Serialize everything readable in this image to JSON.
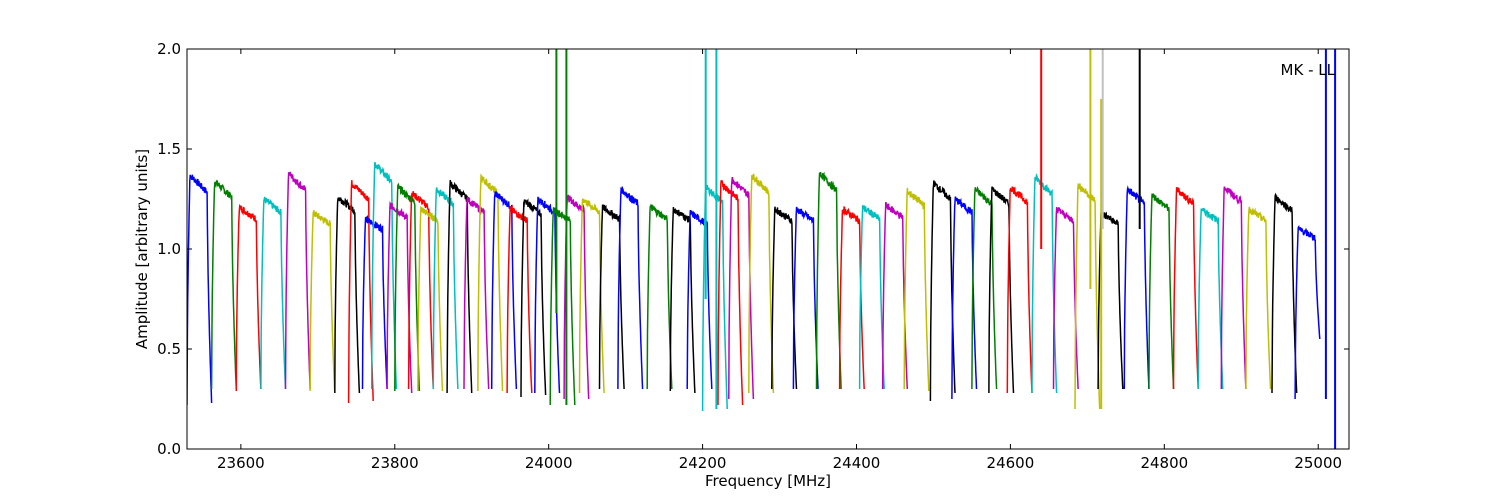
{
  "chart_data": {
    "type": "line",
    "title": "",
    "annotation": "MK - LL",
    "xlabel": "Frequency [MHz]",
    "ylabel": "Amplitude [arbitrary units]",
    "xlim": [
      23530,
      25040
    ],
    "ylim": [
      0.0,
      2.0
    ],
    "xticks": [
      23600,
      23800,
      24000,
      24200,
      24400,
      24600,
      24800,
      25000
    ],
    "yticks": [
      0.0,
      0.5,
      1.0,
      1.5,
      2.0
    ],
    "xtick_labels": [
      "23600",
      "23800",
      "24000",
      "24200",
      "24400",
      "24600",
      "24800",
      "25000"
    ],
    "ytick_labels": [
      "0.0",
      "0.5",
      "1.0",
      "1.5",
      "2.0"
    ],
    "grid": false,
    "legend": "none",
    "color_cycle": [
      "#0000ff",
      "#007f00",
      "#ff0000",
      "#00bfbf",
      "#bf00bf",
      "#bfbf00",
      "#000000"
    ],
    "channel_width_mhz": 32,
    "channels": [
      {
        "start": 23530,
        "color": "#0000ff",
        "peak": 1.37,
        "minL": 0.22,
        "minR": 0.23
      },
      {
        "start": 23562,
        "color": "#007f00",
        "peak": 1.34,
        "minL": 0.3,
        "minR": 0.3
      },
      {
        "start": 23594,
        "color": "#ff0000",
        "peak": 1.21,
        "minL": 0.29,
        "minR": 0.3
      },
      {
        "start": 23626,
        "color": "#00bfbf",
        "peak": 1.25,
        "minL": 0.3,
        "minR": 0.3
      },
      {
        "start": 23658,
        "color": "#bf00bf",
        "peak": 1.38,
        "minL": 0.3,
        "minR": 0.3
      },
      {
        "start": 23690,
        "color": "#bfbf00",
        "peak": 1.18,
        "minL": 0.29,
        "minR": 0.28
      },
      {
        "start": 23722,
        "color": "#000000",
        "peak": 1.26,
        "minL": 0.28,
        "minR": 0.28
      },
      {
        "start": 23740,
        "color": "#ff0000",
        "peak": 1.33,
        "minL": 0.23,
        "minR": 0.24
      },
      {
        "start": 23758,
        "color": "#0000ff",
        "peak": 1.15,
        "minL": 0.3,
        "minR": 0.3
      },
      {
        "start": 23770,
        "color": "#00bfbf",
        "peak": 1.43,
        "minL": 0.3,
        "minR": 0.3
      },
      {
        "start": 23790,
        "color": "#bf00bf",
        "peak": 1.22,
        "minL": 0.3,
        "minR": 0.28
      },
      {
        "start": 23800,
        "color": "#007f00",
        "peak": 1.31,
        "minL": 0.29,
        "minR": 0.29
      },
      {
        "start": 23818,
        "color": "#ff0000",
        "peak": 1.28,
        "minL": 0.3,
        "minR": 0.3
      },
      {
        "start": 23830,
        "color": "#bfbf00",
        "peak": 1.2,
        "minL": 0.29,
        "minR": 0.29
      },
      {
        "start": 23850,
        "color": "#00bfbf",
        "peak": 1.3,
        "minL": 0.3,
        "minR": 0.3
      },
      {
        "start": 23868,
        "color": "#000000",
        "peak": 1.33,
        "minL": 0.28,
        "minR": 0.28
      },
      {
        "start": 23890,
        "color": "#bf00bf",
        "peak": 1.25,
        "minL": 0.3,
        "minR": 0.3
      },
      {
        "start": 23908,
        "color": "#bfbf00",
        "peak": 1.36,
        "minL": 0.29,
        "minR": 0.29
      },
      {
        "start": 23926,
        "color": "#0000ff",
        "peak": 1.28,
        "minL": 0.3,
        "minR": 0.3
      },
      {
        "start": 23946,
        "color": "#ff0000",
        "peak": 1.2,
        "minL": 0.28,
        "minR": 0.28
      },
      {
        "start": 23964,
        "color": "#000000",
        "peak": 1.24,
        "minL": 0.26,
        "minR": 0.27
      },
      {
        "start": 23982,
        "color": "#0000ff",
        "peak": 1.25,
        "minL": 0.28,
        "minR": 0.28
      },
      {
        "start": 24002,
        "color": "#007f00",
        "peak": 1.2,
        "minL": 0.22,
        "minR": 0.22
      },
      {
        "start": 24020,
        "color": "#bf00bf",
        "peak": 1.26,
        "minL": 0.25,
        "minR": 0.25
      },
      {
        "start": 24040,
        "color": "#bfbf00",
        "peak": 1.25,
        "minL": 0.28,
        "minR": 0.28
      },
      {
        "start": 24066,
        "color": "#000000",
        "peak": 1.21,
        "minL": 0.3,
        "minR": 0.3
      },
      {
        "start": 24090,
        "color": "#0000ff",
        "peak": 1.3,
        "minL": 0.3,
        "minR": 0.3
      },
      {
        "start": 24128,
        "color": "#007f00",
        "peak": 1.21,
        "minL": 0.3,
        "minR": 0.3
      },
      {
        "start": 24158,
        "color": "#000000",
        "peak": 1.2,
        "minL": 0.29,
        "minR": 0.28
      },
      {
        "start": 24180,
        "color": "#0000ff",
        "peak": 1.18,
        "minL": 0.3,
        "minR": 0.3
      },
      {
        "start": 24200,
        "color": "#00bfbf",
        "peak": 1.31,
        "minL": 0.19,
        "minR": 0.2
      },
      {
        "start": 24220,
        "color": "#ff0000",
        "peak": 1.33,
        "minL": 0.22,
        "minR": 0.22
      },
      {
        "start": 24234,
        "color": "#bf00bf",
        "peak": 1.35,
        "minL": 0.25,
        "minR": 0.25
      },
      {
        "start": 24260,
        "color": "#bfbf00",
        "peak": 1.37,
        "minL": 0.28,
        "minR": 0.28
      },
      {
        "start": 24290,
        "color": "#000000",
        "peak": 1.2,
        "minL": 0.3,
        "minR": 0.3
      },
      {
        "start": 24318,
        "color": "#0000ff",
        "peak": 1.2,
        "minL": 0.3,
        "minR": 0.3
      },
      {
        "start": 24348,
        "color": "#007f00",
        "peak": 1.38,
        "minL": 0.3,
        "minR": 0.3
      },
      {
        "start": 24378,
        "color": "#ff0000",
        "peak": 1.2,
        "minL": 0.3,
        "minR": 0.3
      },
      {
        "start": 24404,
        "color": "#00bfbf",
        "peak": 1.21,
        "minL": 0.3,
        "minR": 0.3
      },
      {
        "start": 24434,
        "color": "#bf00bf",
        "peak": 1.22,
        "minL": 0.3,
        "minR": 0.3
      },
      {
        "start": 24462,
        "color": "#bfbf00",
        "peak": 1.29,
        "minL": 0.3,
        "minR": 0.29
      },
      {
        "start": 24496,
        "color": "#000000",
        "peak": 1.33,
        "minL": 0.24,
        "minR": 0.28
      },
      {
        "start": 24524,
        "color": "#0000ff",
        "peak": 1.25,
        "minL": 0.25,
        "minR": 0.3
      },
      {
        "start": 24550,
        "color": "#007f00",
        "peak": 1.3,
        "minL": 0.3,
        "minR": 0.3
      },
      {
        "start": 24572,
        "color": "#000000",
        "peak": 1.3,
        "minL": 0.28,
        "minR": 0.28
      },
      {
        "start": 24596,
        "color": "#ff0000",
        "peak": 1.31,
        "minL": 0.28,
        "minR": 0.28
      },
      {
        "start": 24628,
        "color": "#00bfbf",
        "peak": 1.36,
        "minL": 0.28,
        "minR": 0.28
      },
      {
        "start": 24656,
        "color": "#bf00bf",
        "peak": 1.2,
        "minL": 0.3,
        "minR": 0.3
      },
      {
        "start": 24684,
        "color": "#bfbf00",
        "peak": 1.32,
        "minL": 0.2,
        "minR": 0.2
      },
      {
        "start": 24714,
        "color": "#000000",
        "peak": 1.18,
        "minL": 0.3,
        "minR": 0.3
      },
      {
        "start": 24748,
        "color": "#0000ff",
        "peak": 1.3,
        "minL": 0.3,
        "minR": 0.3
      },
      {
        "start": 24780,
        "color": "#007f00",
        "peak": 1.27,
        "minL": 0.3,
        "minR": 0.3
      },
      {
        "start": 24812,
        "color": "#ff0000",
        "peak": 1.3,
        "minL": 0.3,
        "minR": 0.3
      },
      {
        "start": 24844,
        "color": "#00bfbf",
        "peak": 1.2,
        "minL": 0.3,
        "minR": 0.3
      },
      {
        "start": 24874,
        "color": "#bf00bf",
        "peak": 1.31,
        "minL": 0.3,
        "minR": 0.3
      },
      {
        "start": 24906,
        "color": "#bfbf00",
        "peak": 1.2,
        "minL": 0.3,
        "minR": 0.3
      },
      {
        "start": 24940,
        "color": "#000000",
        "peak": 1.26,
        "minL": 0.28,
        "minR": 0.28
      },
      {
        "start": 24970,
        "color": "#0000ff",
        "peak": 1.1,
        "minL": 0.25,
        "minR": 0.55
      }
    ],
    "spikes": [
      {
        "x": 24010,
        "color": "#007f00",
        "y_low": 0.68,
        "y_high": 2.0
      },
      {
        "x": 24023,
        "color": "#007f00",
        "y_low": 0.22,
        "y_high": 2.0
      },
      {
        "x": 24204,
        "color": "#00bfbf",
        "y_low": 0.75,
        "y_high": 2.0
      },
      {
        "x": 24218,
        "color": "#00bfbf",
        "y_low": 0.2,
        "y_high": 2.0
      },
      {
        "x": 24640,
        "color": "#ff0000",
        "y_low": 1.0,
        "y_high": 2.0
      },
      {
        "x": 24704,
        "color": "#bfbf00",
        "y_low": 0.8,
        "y_high": 2.0
      },
      {
        "x": 24718,
        "color": "#bfbf00",
        "y_low": 0.2,
        "y_high": 1.75
      },
      {
        "x": 24720,
        "color": "#c0c0c0",
        "y_low": 1.1,
        "y_high": 2.0
      },
      {
        "x": 24768,
        "color": "#000000",
        "y_low": 1.1,
        "y_high": 2.0
      },
      {
        "x": 25010,
        "color": "#0000ff",
        "y_low": 0.25,
        "y_high": 2.0
      },
      {
        "x": 25022,
        "color": "#0000ff",
        "y_low": 0.0,
        "y_high": 2.0
      }
    ]
  }
}
